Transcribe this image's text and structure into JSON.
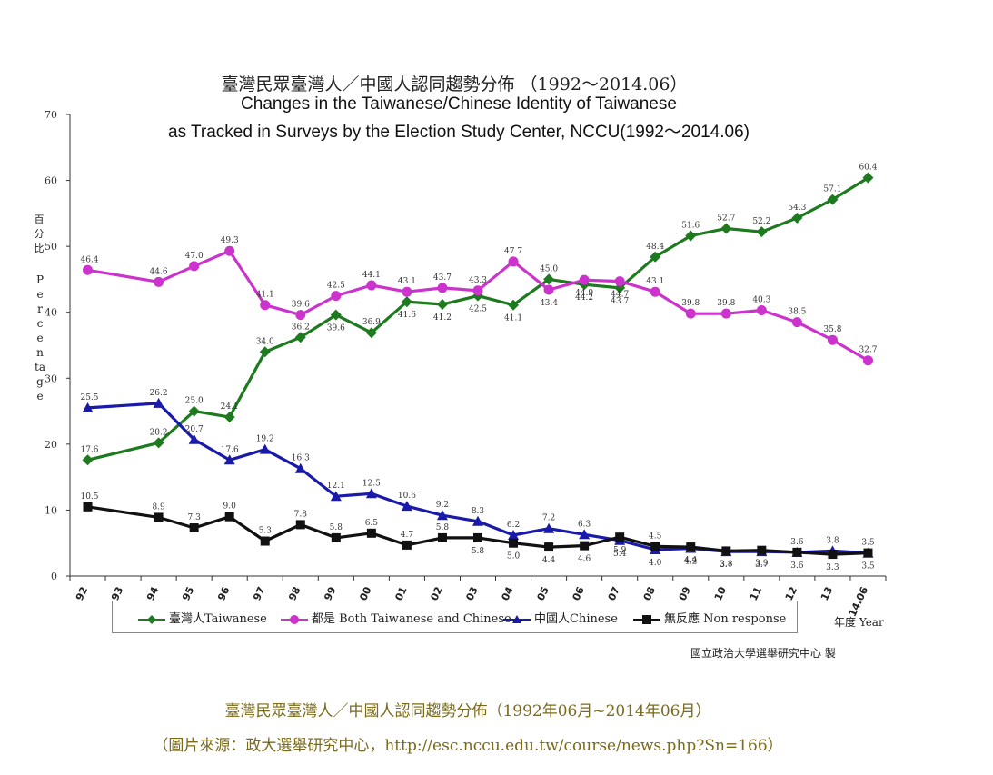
{
  "title_zh": "臺灣民眾臺灣人／中國人認同趨勢分佈 （1992～2014.06）",
  "title_en_line1": "Changes in the Taiwanese/Chinese Identity of Taiwanese",
  "title_en_line2": "as Tracked in Surveys by the Election Study Center, NCCU(1992～2014.06)",
  "ylabel_zh": "百分比",
  "ylabel_en": "Percentage",
  "xlabel": "年度 Year",
  "credit": "國立政治大學選舉研究中心 製",
  "caption_line1": "臺灣民眾臺灣人／中國人認同趨勢分佈（1992年06月~2014年06月）",
  "caption_line2": "（圖片來源：政大選舉研究中心，http://esc.nccu.edu.tw/course/news.php?Sn=166）",
  "chart_data": {
    "type": "line",
    "categories": [
      "92",
      "93",
      "94",
      "95",
      "96",
      "97",
      "98",
      "99",
      "00",
      "01",
      "02",
      "03",
      "04",
      "05",
      "06",
      "07",
      "08",
      "09",
      "10",
      "11",
      "12",
      "13",
      "14.06"
    ],
    "ylim": [
      0,
      70
    ],
    "yticks": [
      0,
      10,
      20,
      30,
      40,
      50,
      60,
      70
    ],
    "grid": false,
    "legend_position": "bottom",
    "series": [
      {
        "name": "臺灣人Taiwanese",
        "color": "#1e7a1e",
        "marker": "diamond",
        "values": [
          17.6,
          null,
          20.2,
          25.0,
          24.1,
          34.0,
          36.2,
          39.6,
          36.9,
          41.6,
          41.2,
          42.5,
          41.1,
          45.0,
          44.2,
          43.7,
          48.4,
          51.6,
          52.7,
          52.2,
          54.3,
          57.1,
          60.4
        ]
      },
      {
        "name": "都是 Both Taiwanese and Chinese",
        "color": "#cc33cc",
        "marker": "circle",
        "values": [
          46.4,
          null,
          44.6,
          47.0,
          49.3,
          41.1,
          39.6,
          42.5,
          44.1,
          43.1,
          43.7,
          43.3,
          47.7,
          43.4,
          44.9,
          44.7,
          43.1,
          39.8,
          39.8,
          40.3,
          38.5,
          35.8,
          32.7
        ]
      },
      {
        "name": "中國人Chinese",
        "color": "#1a1aaa",
        "marker": "triangle",
        "values": [
          25.5,
          null,
          26.2,
          20.7,
          17.6,
          19.2,
          16.3,
          12.1,
          12.5,
          10.6,
          9.2,
          8.3,
          6.2,
          7.2,
          6.3,
          5.4,
          4.0,
          4.2,
          3.7,
          3.7,
          3.6,
          3.8,
          3.5
        ]
      },
      {
        "name": "無反應 Non response",
        "color": "#111111",
        "marker": "square",
        "values": [
          10.5,
          null,
          8.9,
          7.3,
          9.0,
          5.3,
          7.8,
          5.8,
          6.5,
          4.7,
          5.8,
          5.8,
          5.0,
          4.4,
          4.6,
          5.9,
          4.5,
          4.4,
          3.8,
          3.9,
          3.6,
          3.3,
          3.5
        ]
      }
    ]
  }
}
